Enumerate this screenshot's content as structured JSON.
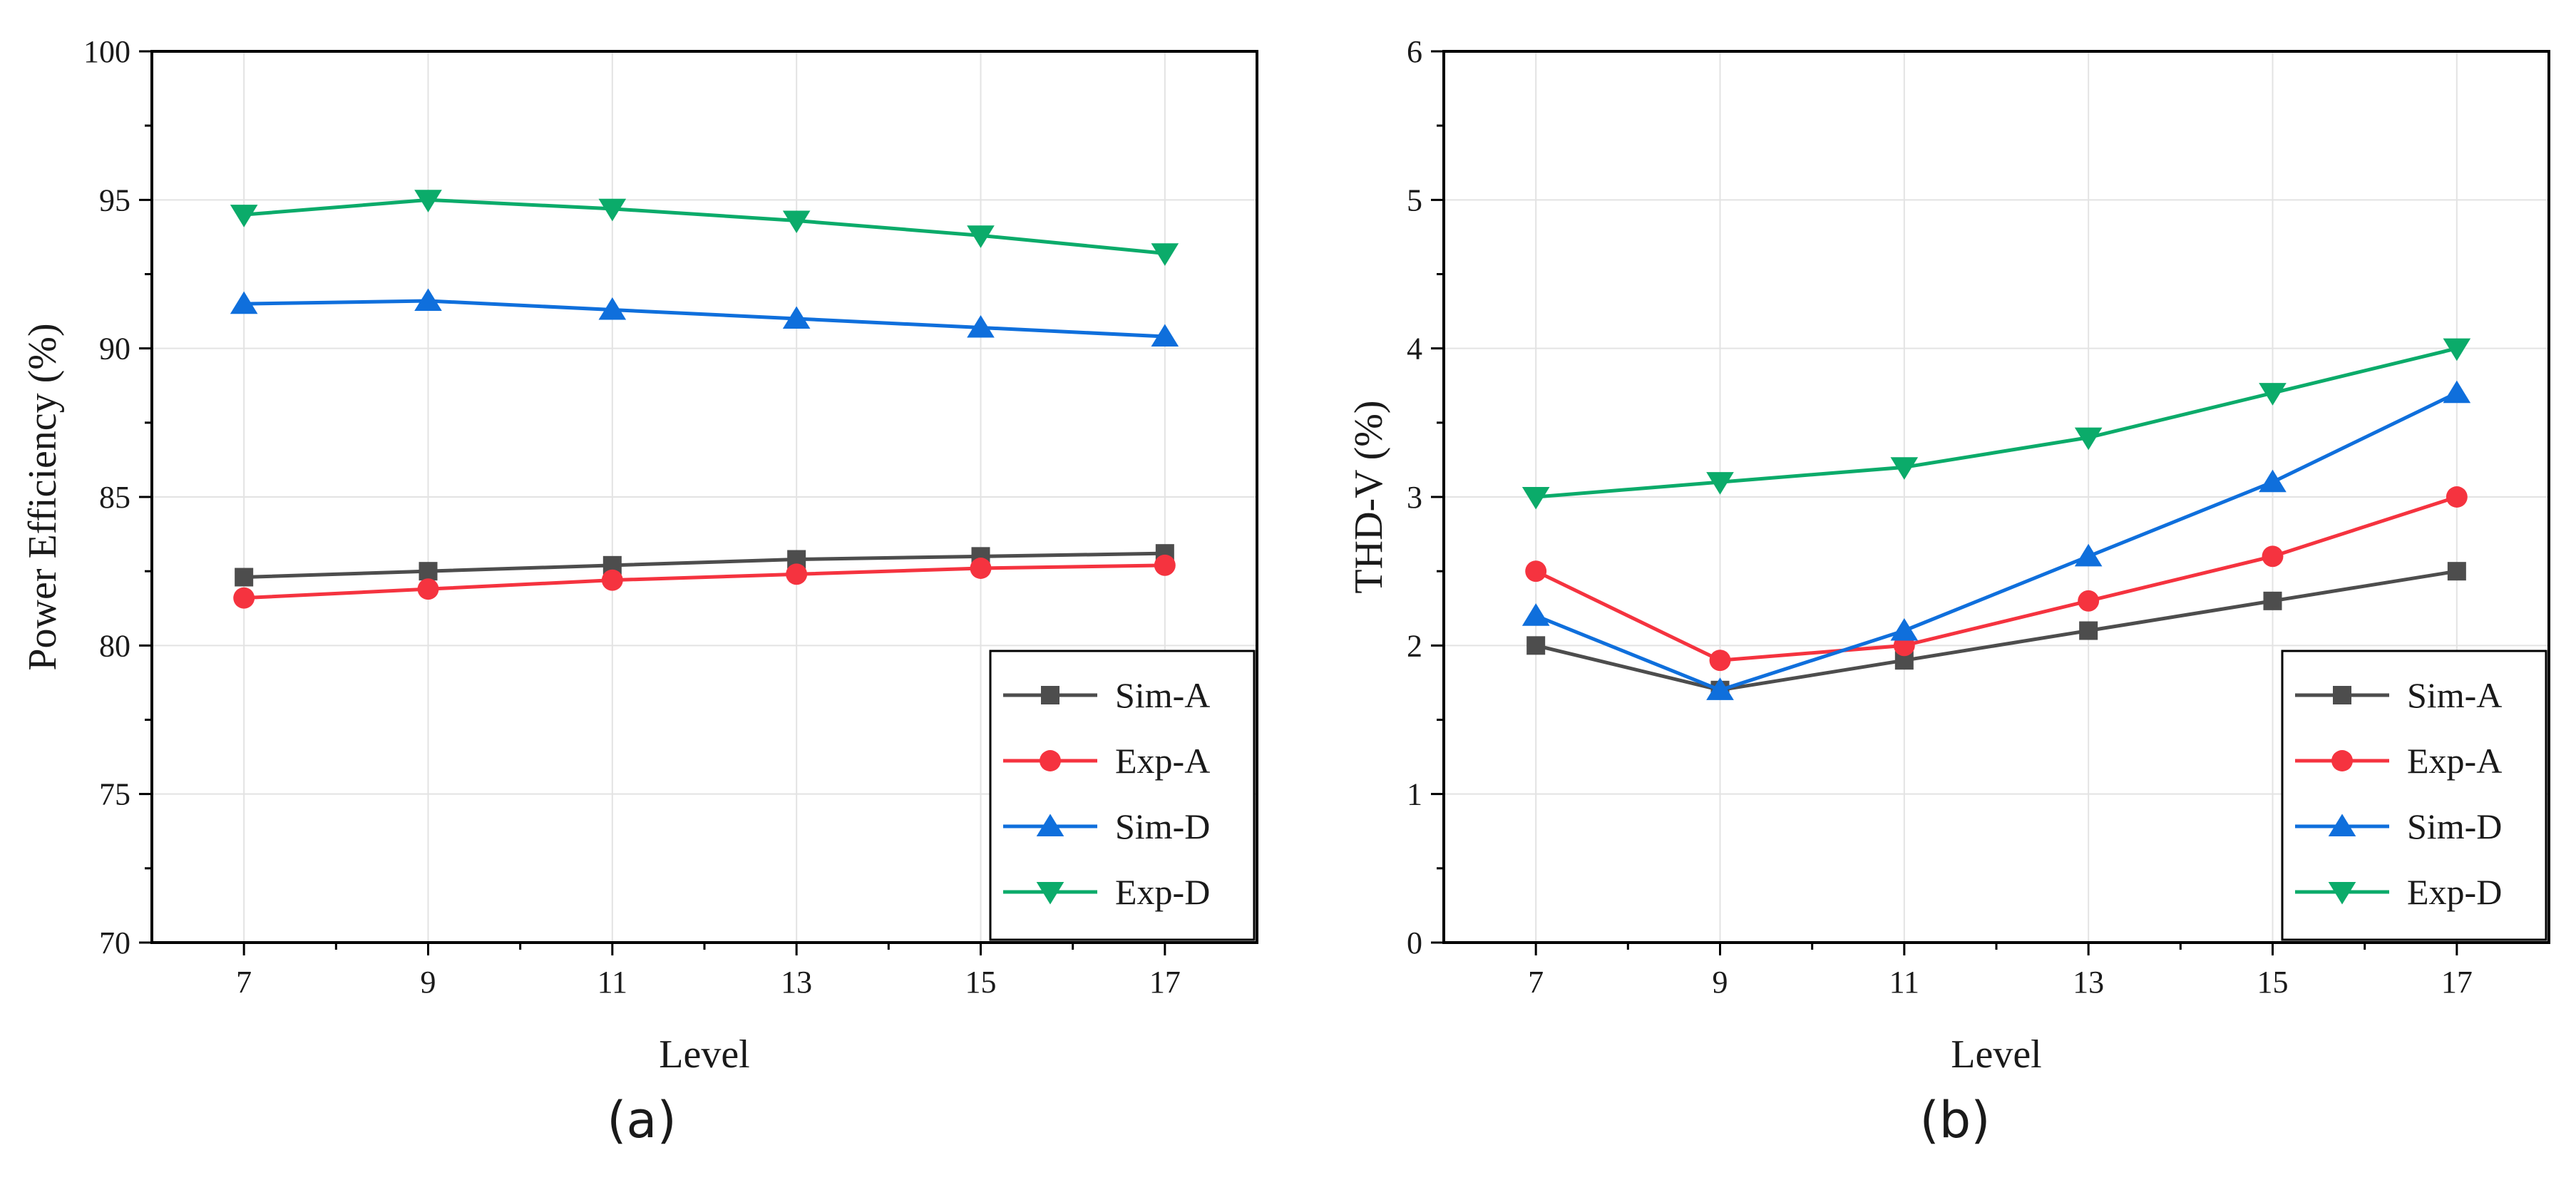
{
  "chart_data": [
    {
      "type": "line",
      "panel": "a",
      "caption": "(a)",
      "xlabel": "Level",
      "ylabel": "Power Efficiency (%)",
      "categories": [
        7,
        9,
        11,
        13,
        15,
        17
      ],
      "xlim": [
        6,
        18
      ],
      "ylim": [
        70,
        100
      ],
      "yticks": [
        70,
        75,
        80,
        85,
        90,
        95,
        100
      ],
      "grid": true,
      "legend_position": "bottom-right",
      "series": [
        {
          "name": "Sim-A",
          "marker": "square",
          "color": "#4d4d4d",
          "values": [
            82.3,
            82.5,
            82.7,
            82.9,
            83.0,
            83.1
          ]
        },
        {
          "name": "Exp-A",
          "marker": "circle",
          "color": "#f5333f",
          "values": [
            81.6,
            81.9,
            82.2,
            82.4,
            82.6,
            82.7
          ]
        },
        {
          "name": "Sim-D",
          "marker": "triangle-up",
          "color": "#0f6fdc",
          "values": [
            91.5,
            91.6,
            91.3,
            91.0,
            90.7,
            90.4
          ]
        },
        {
          "name": "Exp-D",
          "marker": "triangle-down",
          "color": "#0bab6a",
          "values": [
            94.5,
            95.0,
            94.7,
            94.3,
            93.8,
            93.2
          ]
        }
      ]
    },
    {
      "type": "line",
      "panel": "b",
      "caption": "(b)",
      "xlabel": "Level",
      "ylabel": "THD-V (%)",
      "categories": [
        7,
        9,
        11,
        13,
        15,
        17
      ],
      "xlim": [
        6,
        18
      ],
      "ylim": [
        0,
        6
      ],
      "yticks": [
        0,
        1,
        2,
        3,
        4,
        5,
        6
      ],
      "grid": true,
      "legend_position": "bottom-right",
      "series": [
        {
          "name": "Sim-A",
          "marker": "square",
          "color": "#4d4d4d",
          "values": [
            2.0,
            1.7,
            1.9,
            2.1,
            2.3,
            2.5
          ]
        },
        {
          "name": "Exp-A",
          "marker": "circle",
          "color": "#f5333f",
          "values": [
            2.5,
            1.9,
            2.0,
            2.3,
            2.6,
            3.0
          ]
        },
        {
          "name": "Sim-D",
          "marker": "triangle-up",
          "color": "#0f6fdc",
          "values": [
            2.2,
            1.7,
            2.1,
            2.6,
            3.1,
            3.7
          ]
        },
        {
          "name": "Exp-D",
          "marker": "triangle-down",
          "color": "#0bab6a",
          "values": [
            3.0,
            3.1,
            3.2,
            3.4,
            3.7,
            4.0
          ]
        }
      ]
    }
  ]
}
